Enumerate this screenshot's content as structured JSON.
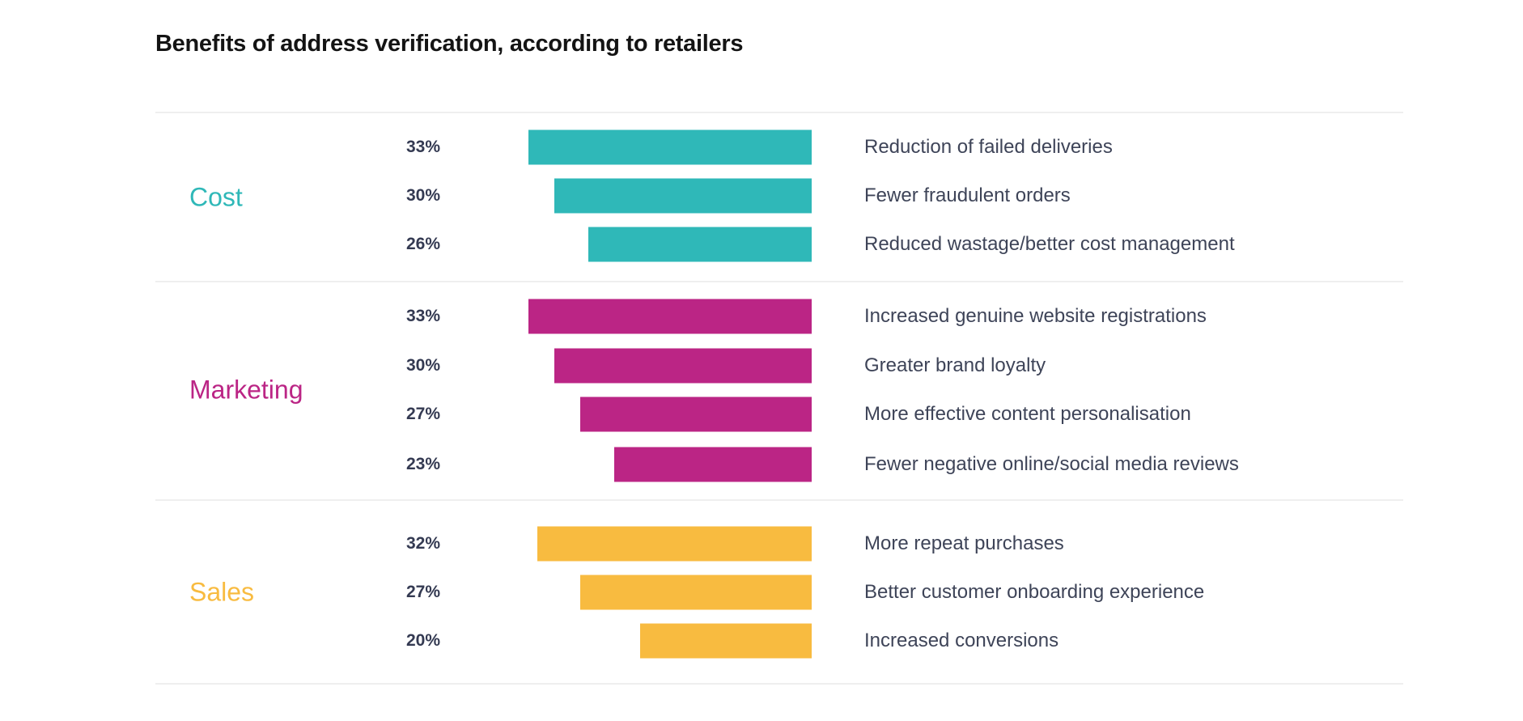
{
  "chart_data": {
    "type": "bar",
    "orientation": "horizontal",
    "title": "Benefits of address verification, according to retailers",
    "value_unit": "%",
    "groups": [
      {
        "name": "Cost",
        "color": "#2fb8b8",
        "items": [
          {
            "label": "Reduction of failed deliveries",
            "value": 33,
            "value_label": "33%"
          },
          {
            "label": "Fewer fraudulent orders",
            "value": 30,
            "value_label": "30%"
          },
          {
            "label": "Reduced wastage/better cost management",
            "value": 26,
            "value_label": "26%"
          }
        ]
      },
      {
        "name": "Marketing",
        "color": "#bb2585",
        "items": [
          {
            "label": "Increased genuine website registrations",
            "value": 33,
            "value_label": "33%"
          },
          {
            "label": "Greater brand loyalty",
            "value": 30,
            "value_label": "30%"
          },
          {
            "label": "More effective content personalisation",
            "value": 27,
            "value_label": "27%"
          },
          {
            "label": "Fewer negative online/social media reviews",
            "value": 23,
            "value_label": "23%"
          }
        ]
      },
      {
        "name": "Sales",
        "color": "#f8bb40",
        "items": [
          {
            "label": "More repeat purchases",
            "value": 32,
            "value_label": "32%"
          },
          {
            "label": "Better customer onboarding experience",
            "value": 27,
            "value_label": "27%"
          },
          {
            "label": "Increased conversions",
            "value": 20,
            "value_label": "20%"
          }
        ]
      }
    ]
  }
}
